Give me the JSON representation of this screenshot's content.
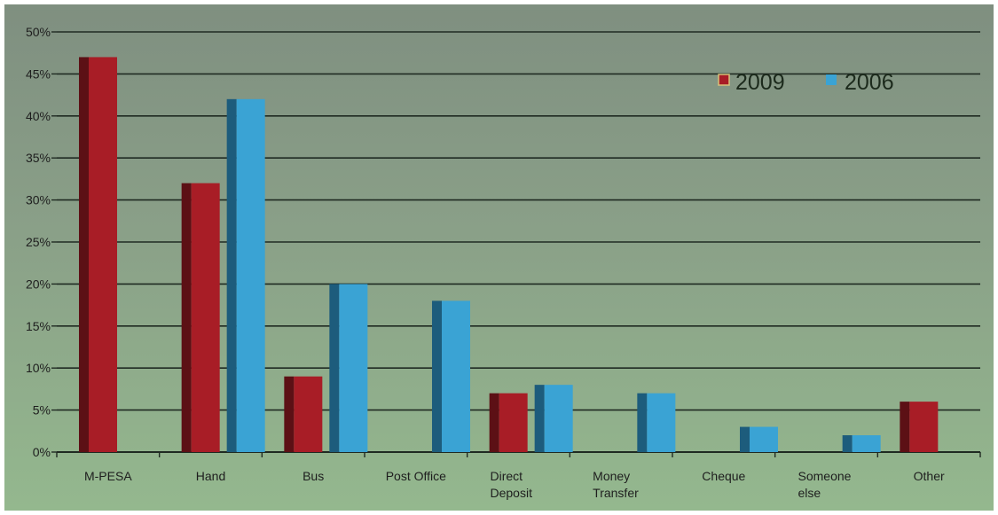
{
  "chart_data": {
    "type": "bar",
    "title": "",
    "xlabel": "",
    "ylabel": "",
    "ylim": [
      0,
      50
    ],
    "yticks": [
      "0%",
      "5%",
      "10%",
      "15%",
      "20%",
      "25%",
      "30%",
      "35%",
      "40%",
      "45%",
      "50%"
    ],
    "grid": true,
    "legend_position": "top-right",
    "categories": [
      [
        "M-PESA"
      ],
      [
        "Hand"
      ],
      [
        "Bus"
      ],
      [
        "Post Office"
      ],
      [
        "Direct",
        "Deposit"
      ],
      [
        "Money",
        "Transfer"
      ],
      [
        "Cheque"
      ],
      [
        "Someone",
        "else"
      ],
      [
        "Other"
      ]
    ],
    "series": [
      {
        "name": "2009",
        "color": "#a81d26",
        "values": [
          47,
          32,
          9,
          0,
          7,
          0,
          0,
          0,
          6
        ]
      },
      {
        "name": "2006",
        "color": "#3aa3d4",
        "values": [
          0,
          42,
          20,
          18,
          8,
          7,
          3,
          2,
          0
        ]
      }
    ]
  }
}
